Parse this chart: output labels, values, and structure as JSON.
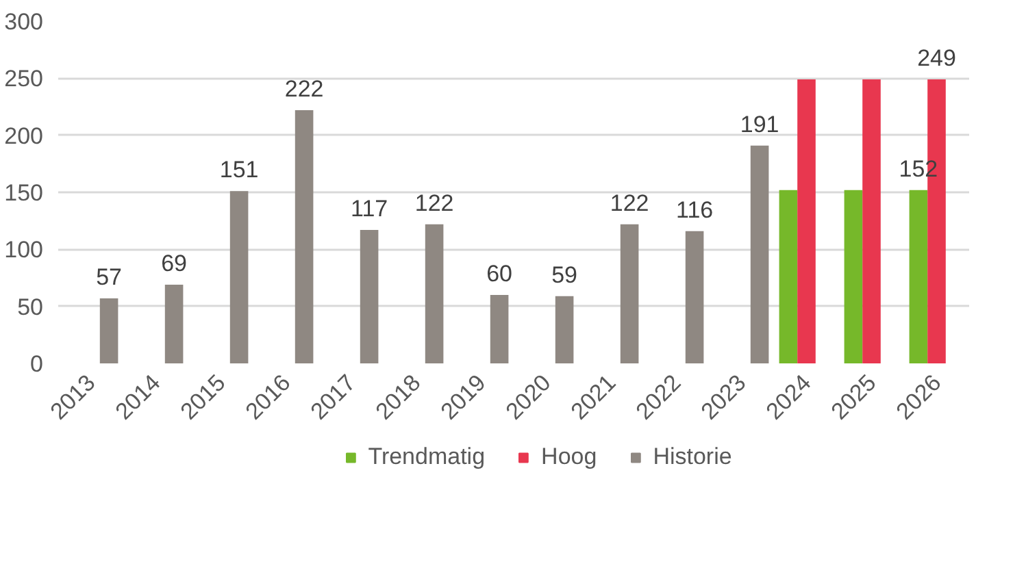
{
  "chart_data": {
    "type": "bar",
    "categories": [
      "2013",
      "2014",
      "2015",
      "2016",
      "2017",
      "2018",
      "2019",
      "2020",
      "2021",
      "2022",
      "2023",
      "2024",
      "2025",
      "2026"
    ],
    "series": [
      {
        "name": "Trendmatig",
        "color": "#76b82a",
        "values": [
          null,
          null,
          null,
          null,
          null,
          null,
          null,
          null,
          null,
          null,
          null,
          152,
          152,
          152
        ],
        "value_labels": [
          null,
          null,
          null,
          null,
          null,
          null,
          null,
          null,
          null,
          null,
          null,
          null,
          null,
          "152"
        ]
      },
      {
        "name": "Hoog",
        "color": "#e8374f",
        "values": [
          null,
          null,
          null,
          null,
          null,
          null,
          null,
          null,
          null,
          null,
          null,
          249,
          249,
          249
        ],
        "value_labels": [
          null,
          null,
          null,
          null,
          null,
          null,
          null,
          null,
          null,
          null,
          null,
          null,
          null,
          "249"
        ]
      },
      {
        "name": "Historie",
        "color": "#8f8882",
        "values": [
          57,
          69,
          151,
          222,
          117,
          122,
          60,
          59,
          122,
          116,
          191,
          null,
          null,
          null
        ],
        "value_labels": [
          "57",
          "69",
          "151",
          "222",
          "117",
          "122",
          "60",
          "59",
          "122",
          "116",
          "191",
          null,
          null,
          null
        ]
      }
    ],
    "ylim": [
      0,
      300
    ],
    "yticks": [
      0,
      50,
      100,
      150,
      200,
      250,
      300
    ],
    "grid": "y",
    "legend": "bottom"
  }
}
